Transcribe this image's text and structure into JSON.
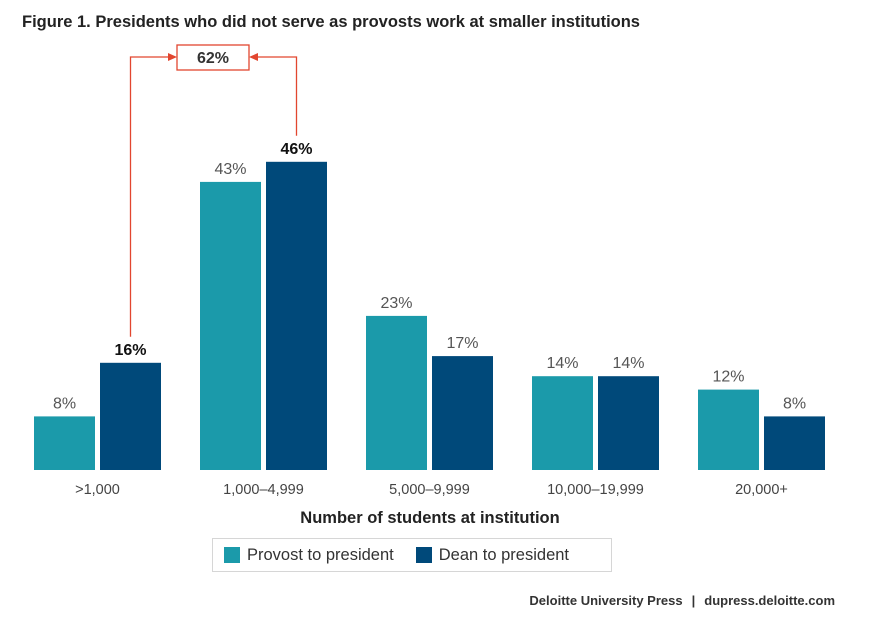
{
  "chart_data": {
    "type": "bar",
    "title": "Figure 1. Presidents who did not serve as provosts work at smaller institutions",
    "xlabel": "Number of students at institution",
    "ylabel": "",
    "categories": [
      ">1,000",
      "1,000–4,999",
      "5,000–9,999",
      "10,000–19,999",
      "20,000+"
    ],
    "series": [
      {
        "name": "Provost to president",
        "values": [
          8,
          43,
          23,
          14,
          12
        ],
        "labels": [
          "8%",
          "43%",
          "23%",
          "14%",
          "12%"
        ],
        "color": "#1b9aaa"
      },
      {
        "name": "Dean to president",
        "values": [
          16,
          46,
          17,
          14,
          8
        ],
        "labels": [
          "16%",
          "46%",
          "17%",
          "14%",
          "8%"
        ],
        "color": "#00497a"
      }
    ],
    "bold_labels": [
      {
        "series": 1,
        "index": 0
      },
      {
        "series": 1,
        "index": 1
      }
    ],
    "ylim": [
      0,
      50
    ],
    "grid": false,
    "legend_position": "bottom",
    "annotation": {
      "text": "62%",
      "from": {
        "series": 1,
        "index": 0
      },
      "to": {
        "series": 1,
        "index": 1
      },
      "color": "#e2462f"
    }
  },
  "source": {
    "publisher": "Deloitte University Press",
    "separator": "|",
    "url": "dupress.deloitte.com"
  }
}
